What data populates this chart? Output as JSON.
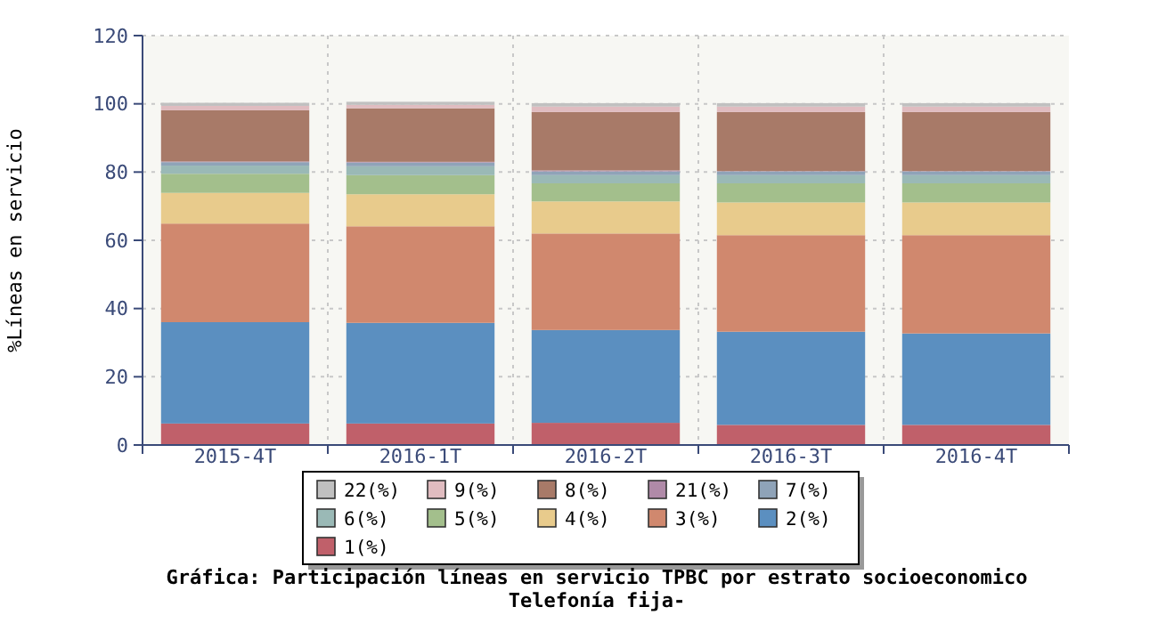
{
  "chart_data": {
    "type": "bar",
    "stacked": true,
    "title": "Gráfica: Participación líneas en servicio TPBC por estrato socioeconomico",
    "subtitle": "Telefonía fija-",
    "ylabel": "%Líneas en servicio",
    "categories": [
      "2015-4T",
      "2016-1T",
      "2016-2T",
      "2016-3T",
      "2016-4T"
    ],
    "ylim": [
      0,
      120
    ],
    "yticks": [
      0,
      20,
      40,
      60,
      80,
      100,
      120
    ],
    "grid": true,
    "legend": "bottom",
    "series": [
      {
        "name": "1(%)",
        "color": "#c0606a",
        "values": [
          6.3,
          6.3,
          6.5,
          5.9,
          5.9
        ]
      },
      {
        "name": "2(%)",
        "color": "#5b8fc0",
        "values": [
          29.7,
          29.5,
          27.2,
          27.3,
          26.8
        ]
      },
      {
        "name": "3(%)",
        "color": "#d0886e",
        "values": [
          28.9,
          28.3,
          28.3,
          28.3,
          28.8
        ]
      },
      {
        "name": "4(%)",
        "color": "#e8cb8c",
        "values": [
          9.0,
          9.4,
          9.4,
          9.6,
          9.6
        ]
      },
      {
        "name": "5(%)",
        "color": "#a3bf8c",
        "values": [
          5.6,
          5.6,
          5.3,
          5.6,
          5.6
        ]
      },
      {
        "name": "6(%)",
        "color": "#9ab9b6",
        "values": [
          2.4,
          2.6,
          2.4,
          2.4,
          2.4
        ]
      },
      {
        "name": "7(%)",
        "color": "#8fa3b8",
        "values": [
          1.0,
          1.1,
          1.1,
          1.1,
          1.1
        ]
      },
      {
        "name": "21(%)",
        "color": "#b08aa8",
        "values": [
          0.2,
          0.2,
          0.3,
          0.1,
          0.1
        ]
      },
      {
        "name": "8(%)",
        "color": "#a87a68",
        "values": [
          15.0,
          15.7,
          17.1,
          17.3,
          17.3
        ]
      },
      {
        "name": "9(%)",
        "color": "#e0bcc0",
        "values": [
          1.3,
          1.0,
          1.6,
          1.6,
          1.6
        ]
      },
      {
        "name": "22(%)",
        "color": "#c0c0c0",
        "values": [
          0.9,
          0.9,
          1.0,
          1.0,
          1.0
        ]
      }
    ]
  }
}
